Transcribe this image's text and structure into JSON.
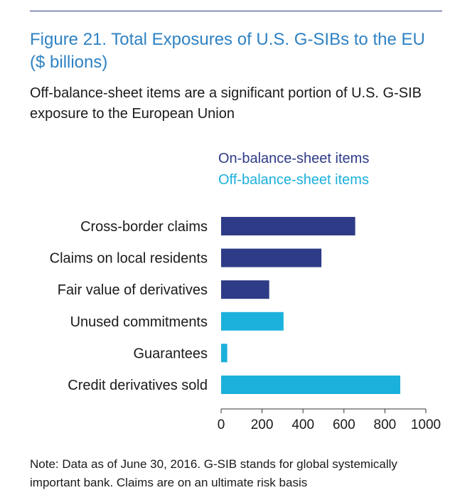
{
  "header": {
    "title": "Figure 21. Total Exposures of U.S. G-SIBs to the EU ($ billions)",
    "subtitle": "Off-balance-sheet items are a significant portion of U.S. G-SIB exposure to the European Union"
  },
  "legend": {
    "on_label": "On-balance-sheet items",
    "off_label": "Off-balance-sheet items"
  },
  "colors": {
    "on": "#2e3b86",
    "off": "#1cb0dc",
    "title": "#2f82c3"
  },
  "chart_data": {
    "type": "bar",
    "orientation": "horizontal",
    "title": "Figure 21. Total Exposures of U.S. G-SIBs to the EU ($ billions)",
    "xlabel": "",
    "ylabel": "",
    "xlim": [
      0,
      1000
    ],
    "xticks": [
      0,
      200,
      400,
      600,
      800,
      1000
    ],
    "categories": [
      "Cross-border claims",
      "Claims on local residents",
      "Fair value of derivatives",
      "Unused commitments",
      "Guarantees",
      "Credit derivatives sold"
    ],
    "values": [
      655,
      490,
      235,
      305,
      30,
      875
    ],
    "groups": [
      "on",
      "on",
      "on",
      "off",
      "off",
      "off"
    ],
    "series": [
      {
        "name": "On-balance-sheet items",
        "key": "on"
      },
      {
        "name": "Off-balance-sheet items",
        "key": "off"
      }
    ],
    "grid": false,
    "legend_position": "top"
  },
  "footer": {
    "note": "Note: Data as of June 30, 2016. G-SIB stands for global systemically important bank. Claims are on an ultimate risk basis"
  }
}
